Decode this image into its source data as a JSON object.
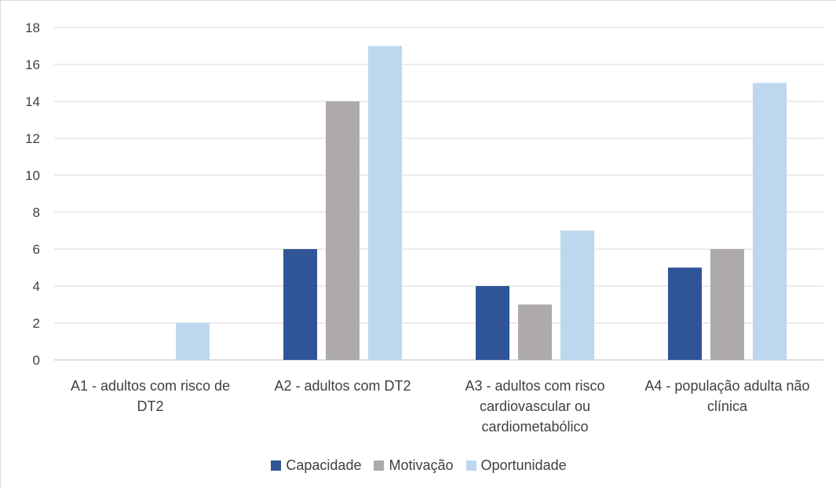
{
  "chart_data": {
    "type": "bar",
    "title": "",
    "xlabel": "",
    "ylabel": "",
    "ylim": [
      0,
      18
    ],
    "yticks": [
      0,
      2,
      4,
      6,
      8,
      10,
      12,
      14,
      16,
      18
    ],
    "grid": true,
    "legend_position": "bottom",
    "categories": [
      [
        "A1 - adultos com risco de",
        "DT2"
      ],
      [
        "A2 - adultos com DT2"
      ],
      [
        "A3 - adultos com risco",
        "cardiovascular ou",
        "cardiometabólico"
      ],
      [
        "A4 - população adulta não",
        "clínica"
      ]
    ],
    "series": [
      {
        "name": "Capacidade",
        "color": "#2f5597",
        "values": [
          0,
          6,
          4,
          5
        ]
      },
      {
        "name": "Motivação",
        "color": "#aeaaaa",
        "values": [
          0,
          14,
          3,
          6
        ]
      },
      {
        "name": "Oportunidade",
        "color": "#bdd7ee",
        "values": [
          2,
          17,
          7,
          15
        ]
      }
    ]
  }
}
